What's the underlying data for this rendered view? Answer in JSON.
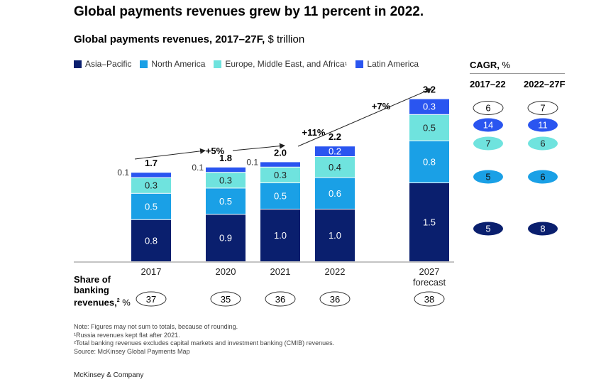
{
  "title": "Global payments revenues grew by 11 percent in 2022.",
  "subtitle_bold": "Global payments revenues, 2017–27F,",
  "subtitle_unit": "$ trillion",
  "legend": [
    {
      "label": "Asia–Pacific",
      "color": "#0a1f6e",
      "sup": ""
    },
    {
      "label": "North America",
      "color": "#1aa0e6",
      "sup": ""
    },
    {
      "label": "Europe, Middle East, and Africa",
      "color": "#6fe3de",
      "sup": "1"
    },
    {
      "label": "Latin America",
      "color": "#2a55f0",
      "sup": ""
    }
  ],
  "chart_data": {
    "type": "bar",
    "stacked": true,
    "categories": [
      "2017",
      "2020",
      "2021",
      "2022",
      "2027 forecast"
    ],
    "series": [
      {
        "name": "Asia–Pacific",
        "color": "#0a1f6e",
        "values": [
          0.8,
          0.9,
          1.0,
          1.0,
          1.5
        ]
      },
      {
        "name": "North America",
        "color": "#1aa0e6",
        "values": [
          0.5,
          0.5,
          0.5,
          0.6,
          0.8
        ]
      },
      {
        "name": "Europe, Middle East, and Africa",
        "color": "#6fe3de",
        "values": [
          0.3,
          0.3,
          0.3,
          0.4,
          0.5
        ]
      },
      {
        "name": "Latin America",
        "color": "#2a55f0",
        "values": [
          0.1,
          0.1,
          0.1,
          0.2,
          0.3
        ]
      }
    ],
    "segment_labels": [
      [
        "0.8",
        "0.5",
        "0.3",
        "0.1"
      ],
      [
        "0.9",
        "0.5",
        "0.3",
        "0.1"
      ],
      [
        "1.0",
        "0.5",
        "0.3",
        "0.1"
      ],
      [
        "1.0",
        "0.6",
        "0.4",
        "0.2"
      ],
      [
        "1.5",
        "0.8",
        "0.5",
        "0.3"
      ]
    ],
    "totals": [
      "1.7",
      "1.8",
      "2.0",
      "2.2",
      "3.2"
    ],
    "growth_annotations": [
      "+5%",
      "+11%",
      "+7%"
    ],
    "share_of_banking_revenues": [
      "37",
      "35",
      "36",
      "36",
      "38"
    ],
    "cagr": {
      "title_bold": "CAGR,",
      "title_unit": "%",
      "periods": [
        "2017–22",
        "2022–27F"
      ],
      "values": {
        "Asia–Pacific": [
          "5",
          "8"
        ],
        "North America": [
          "5",
          "6"
        ],
        "Europe, Middle East, and Africa": [
          "7",
          "6"
        ],
        "Latin America": [
          "14",
          "11"
        ],
        "Total": [
          "6",
          "7"
        ]
      }
    }
  },
  "share_label": {
    "line1": "Share of",
    "line2": "banking",
    "line3": "revenues,",
    "sup": "2",
    "unit": "%"
  },
  "notes": [
    "Note: Figures may not sum to totals, because of rounding.",
    "¹Russia revenues kept flat after 2021.",
    "²Total banking revenues excludes capital markets and investment banking (CMIB) revenues.",
    "Source: McKinsey Global Payments Map"
  ],
  "brand": "McKinsey & Company"
}
